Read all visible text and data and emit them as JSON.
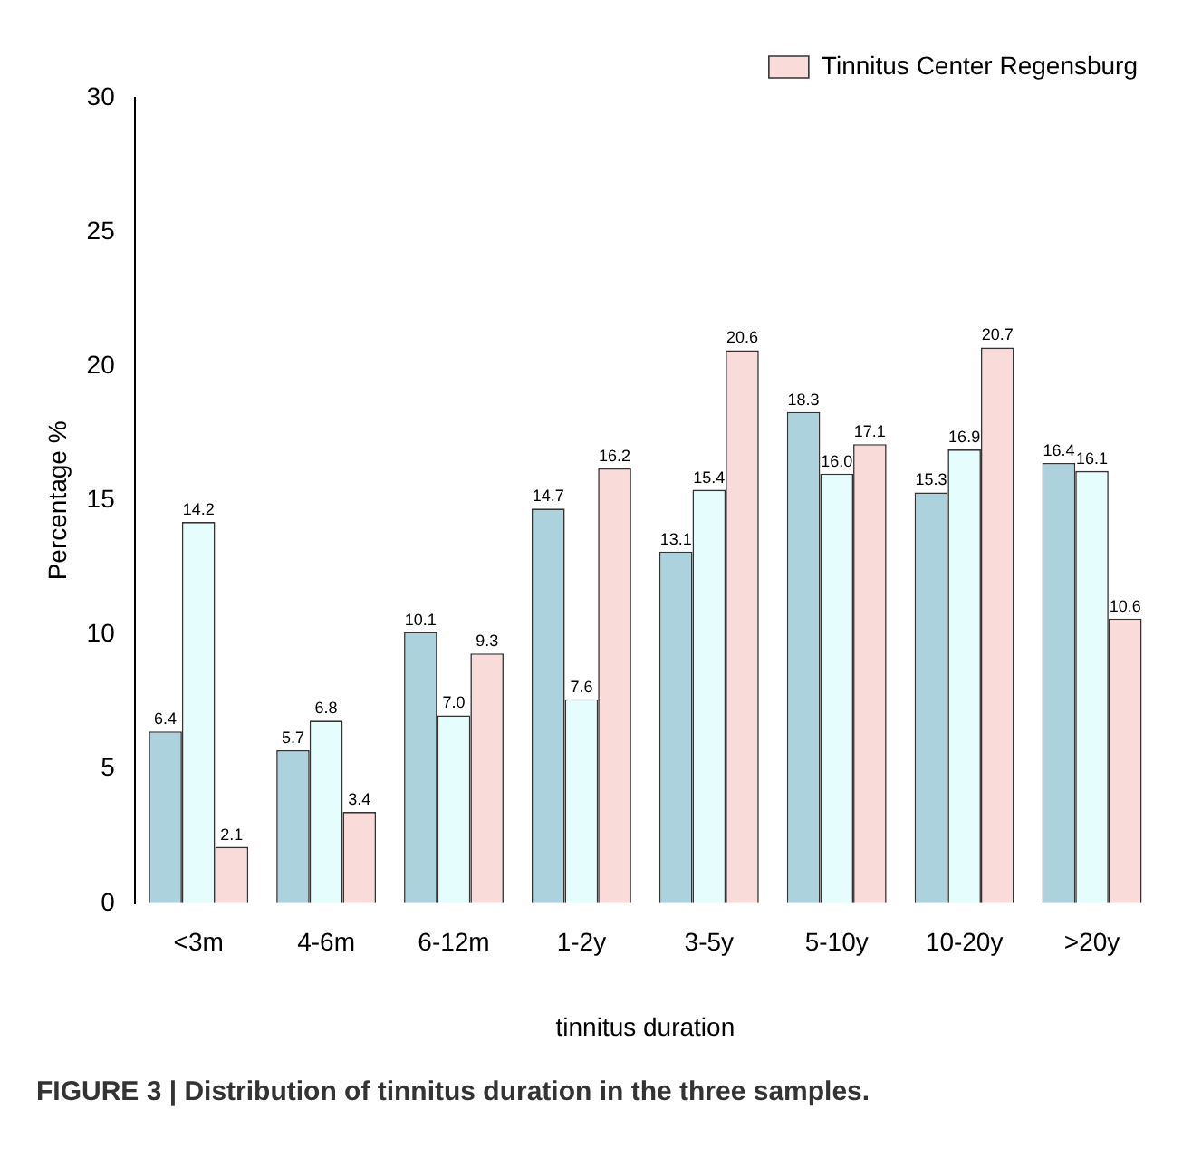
{
  "chart_data": {
    "type": "bar",
    "xlabel": "tinnitus duration",
    "ylabel": "Percentage %",
    "categories": [
      "<3m",
      "4-6m",
      "6-12m",
      "1-2y",
      "3-5y",
      "5-10y",
      "10-20y",
      ">20y"
    ],
    "series": [
      {
        "color": "#acd2dd",
        "values": [
          6.4,
          5.7,
          10.1,
          14.7,
          13.1,
          18.3,
          15.3,
          16.4
        ],
        "value_labels": [
          "6.4",
          "5.7",
          "10.1",
          "14.7",
          "13.1",
          "18.3",
          "15.3",
          "16.4"
        ]
      },
      {
        "color": "#e6fdfd",
        "values": [
          14.2,
          6.8,
          7.0,
          7.6,
          15.4,
          16.0,
          16.9,
          16.1
        ],
        "value_labels": [
          "14.2",
          "6.8",
          "7.0",
          "7.6",
          "15.4",
          "16.0",
          "16.9",
          "16.1"
        ]
      },
      {
        "name": "Tinnitus Center Regensburg",
        "color": "#f9dcda",
        "values": [
          2.1,
          3.4,
          9.3,
          16.2,
          20.6,
          17.1,
          20.7,
          10.6
        ],
        "value_labels": [
          "2.1",
          "3.4",
          "9.3",
          "16.2",
          "20.6",
          "17.1",
          "20.7",
          "10.6"
        ]
      }
    ],
    "ylim": [
      0,
      30
    ],
    "yticks": [
      0,
      5,
      10,
      15,
      20,
      25,
      30
    ],
    "grid": false,
    "legend": "top right",
    "annotations": [
      "FIGURE 3 | Distribution of tinnitus duration in the three samples."
    ]
  }
}
